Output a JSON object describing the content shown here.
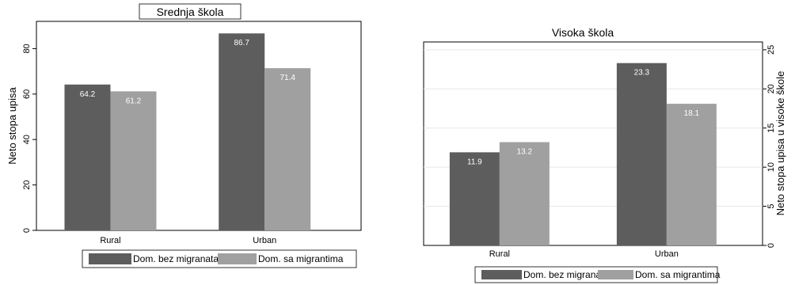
{
  "chart_data": [
    {
      "type": "bar",
      "title": "Srednja škola",
      "ylabel": "Neto stopa upisa",
      "ylim": [
        0,
        92
      ],
      "yticks": [
        0,
        20,
        40,
        60,
        80
      ],
      "y_axis_side": "left",
      "categories": [
        "Rural",
        "Urban"
      ],
      "series": [
        {
          "name": "Dom. bez migranata",
          "values": [
            64.2,
            86.7
          ],
          "labels": [
            "64.2",
            "86.7"
          ],
          "color": "#5d5d5d"
        },
        {
          "name": "Dom. sa migrantima",
          "values": [
            61.2,
            71.4
          ],
          "labels": [
            "61.2",
            "71.4"
          ],
          "color": "#a0a0a0"
        }
      ],
      "legend": "bottom",
      "grid": false
    },
    {
      "type": "bar",
      "title": "Visoka škola",
      "ylabel": "Neto stopa upisa u visoke škole",
      "ylim": [
        0,
        26
      ],
      "yticks": [
        0,
        5,
        10,
        15,
        20,
        25
      ],
      "y_axis_side": "right",
      "categories": [
        "Rural",
        "Urban"
      ],
      "series": [
        {
          "name": "Dom. bez migranata",
          "values": [
            11.9,
            23.3
          ],
          "labels": [
            "11.9",
            "23.3"
          ],
          "color": "#5d5d5d"
        },
        {
          "name": "Dom. sa migrantima",
          "values": [
            13.2,
            18.1
          ],
          "labels": [
            "13.2",
            "18.1"
          ],
          "color": "#a0a0a0"
        }
      ],
      "legend": "bottom",
      "grid": true
    }
  ]
}
